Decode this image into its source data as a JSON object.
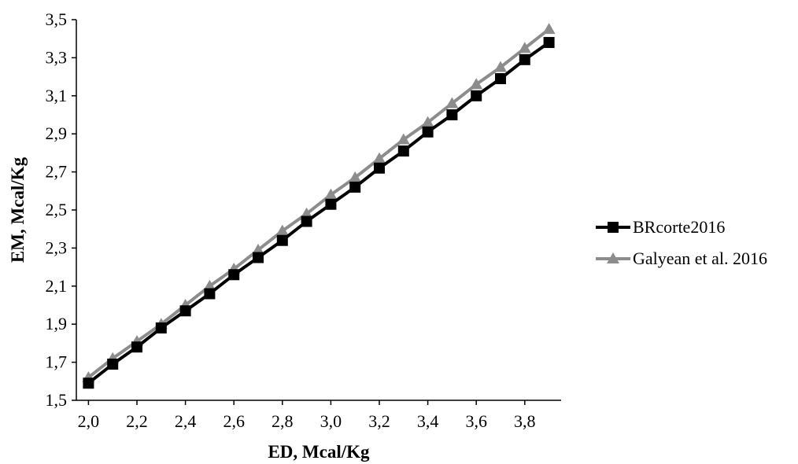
{
  "chart_data": {
    "type": "line",
    "title": "",
    "xlabel": "ED, Mcal/Kg",
    "ylabel": "EM, Mcal/Kg",
    "xlim": [
      1.95,
      3.95
    ],
    "ylim": [
      1.5,
      3.5
    ],
    "x_ticks": [
      2.0,
      2.2,
      2.4,
      2.6,
      2.8,
      3.0,
      3.2,
      3.4,
      3.6,
      3.8
    ],
    "x_tick_labels": [
      "2,0",
      "2,2",
      "2,4",
      "2,6",
      "2,8",
      "3,0",
      "3,2",
      "3,4",
      "3,6",
      "3,8"
    ],
    "y_ticks": [
      1.5,
      1.7,
      1.9,
      2.1,
      2.3,
      2.5,
      2.7,
      2.9,
      3.1,
      3.3,
      3.5
    ],
    "y_tick_labels": [
      "1,5",
      "1,7",
      "1,9",
      "2,1",
      "2,3",
      "2,5",
      "2,7",
      "2,9",
      "3,1",
      "3,3",
      "3,5"
    ],
    "grid": false,
    "legend_position": "right",
    "x": [
      2.0,
      2.1,
      2.2,
      2.3,
      2.4,
      2.5,
      2.6,
      2.7,
      2.8,
      2.9,
      3.0,
      3.1,
      3.2,
      3.3,
      3.4,
      3.5,
      3.6,
      3.7,
      3.8,
      3.9
    ],
    "series": [
      {
        "name": "BRcorte2016",
        "color": "#000000",
        "marker": "square",
        "values": [
          1.59,
          1.69,
          1.78,
          1.88,
          1.97,
          2.06,
          2.16,
          2.25,
          2.34,
          2.44,
          2.53,
          2.62,
          2.72,
          2.81,
          2.91,
          3.0,
          3.1,
          3.19,
          3.29,
          3.38
        ]
      },
      {
        "name": "Galyean et al. 2016",
        "color": "#8c8c8c",
        "marker": "triangle",
        "values": [
          1.62,
          1.72,
          1.81,
          1.9,
          2.0,
          2.1,
          2.19,
          2.29,
          2.39,
          2.48,
          2.58,
          2.67,
          2.77,
          2.87,
          2.96,
          3.06,
          3.16,
          3.25,
          3.35,
          3.45
        ]
      }
    ]
  }
}
